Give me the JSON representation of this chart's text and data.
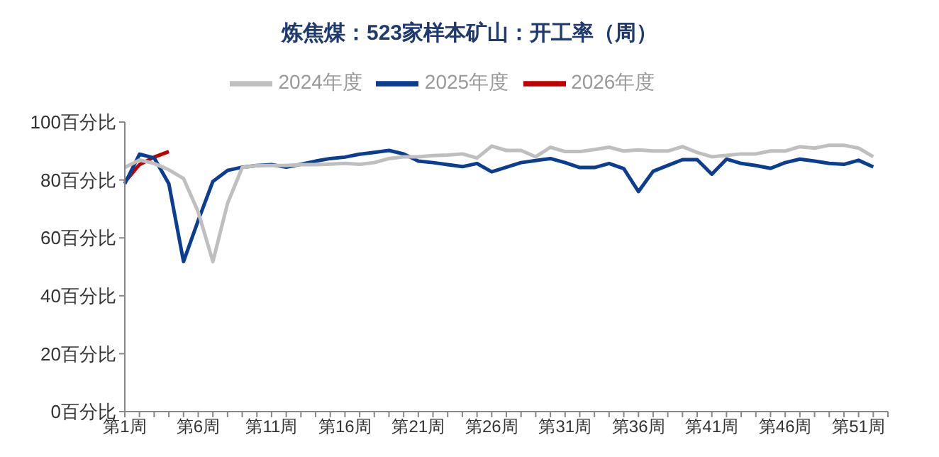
{
  "chart_data": {
    "type": "line",
    "title": "炼焦煤：523家样本矿山：开工率（周）",
    "categories": [
      "第1周",
      null,
      null,
      null,
      null,
      "第6周",
      null,
      null,
      null,
      null,
      "第11周",
      null,
      null,
      null,
      null,
      "第16周",
      null,
      null,
      null,
      null,
      "第21周",
      null,
      null,
      null,
      null,
      "第26周",
      null,
      null,
      null,
      null,
      "第31周",
      null,
      null,
      null,
      null,
      "第36周",
      null,
      null,
      null,
      null,
      "第41周",
      null,
      null,
      null,
      null,
      "第46周",
      null,
      null,
      null,
      null,
      "第51周",
      null,
      null
    ],
    "series": [
      {
        "name": "2026年度",
        "color": "#c00000",
        "values": [
          79.3,
          85.3,
          87.9,
          89.8,
          null,
          null,
          null,
          null,
          null,
          null,
          null,
          null,
          null,
          null,
          null,
          null,
          null,
          null,
          null,
          null,
          null,
          null,
          null,
          null,
          null,
          null,
          null,
          null,
          null,
          null,
          null,
          null,
          null,
          null,
          null,
          null,
          null,
          null,
          null,
          null,
          null,
          null,
          null,
          null,
          null,
          null,
          null,
          null,
          null,
          null,
          null,
          null,
          null
        ]
      },
      {
        "name": "2025年度",
        "color": "#0b3d91",
        "values": [
          78.7,
          88.9,
          87.6,
          78.7,
          51.8,
          66,
          79.5,
          83.3,
          84.4,
          85,
          85.3,
          84.4,
          85.4,
          86.5,
          87.4,
          87.9,
          88.9,
          89.5,
          90.2,
          89,
          86.5,
          86,
          85.3,
          84.6,
          85.7,
          82.8,
          84.4,
          86,
          86.7,
          87.4,
          86,
          84.3,
          84.3,
          85.7,
          83.9,
          76,
          83,
          85,
          87,
          87,
          82,
          87.2,
          85.7,
          85,
          84,
          86,
          87.2,
          86.5,
          85.7,
          85.4,
          86.8,
          84.5,
          null
        ]
      },
      {
        "name": "2024年度",
        "color": "#bfbfbf",
        "values": [
          84.3,
          86.9,
          85.7,
          83.5,
          80.5,
          69,
          51.8,
          71.9,
          84.3,
          85,
          85,
          85,
          85.3,
          85.3,
          85.5,
          85.7,
          85.4,
          86,
          87.4,
          88,
          88,
          88.4,
          88.6,
          89,
          87.6,
          91.7,
          90.2,
          90.2,
          88,
          91.3,
          89.8,
          89.8,
          90.5,
          91.3,
          90,
          90.4,
          90,
          90,
          91.5,
          89.5,
          88,
          88.5,
          89,
          89,
          90,
          90,
          91.5,
          91,
          92,
          92,
          91,
          88,
          null
        ]
      }
    ],
    "ylim": [
      0,
      100
    ],
    "yticks": [
      {
        "value": 0,
        "label": "0百分比"
      },
      {
        "value": 20,
        "label": "20百分比"
      },
      {
        "value": 40,
        "label": "40百分比"
      },
      {
        "value": 60,
        "label": "60百分比"
      },
      {
        "value": 80,
        "label": "80百分比"
      },
      {
        "value": 100,
        "label": "100百分比"
      }
    ],
    "grid": false,
    "legend": "top",
    "marker": "none",
    "line_style": "solid"
  }
}
